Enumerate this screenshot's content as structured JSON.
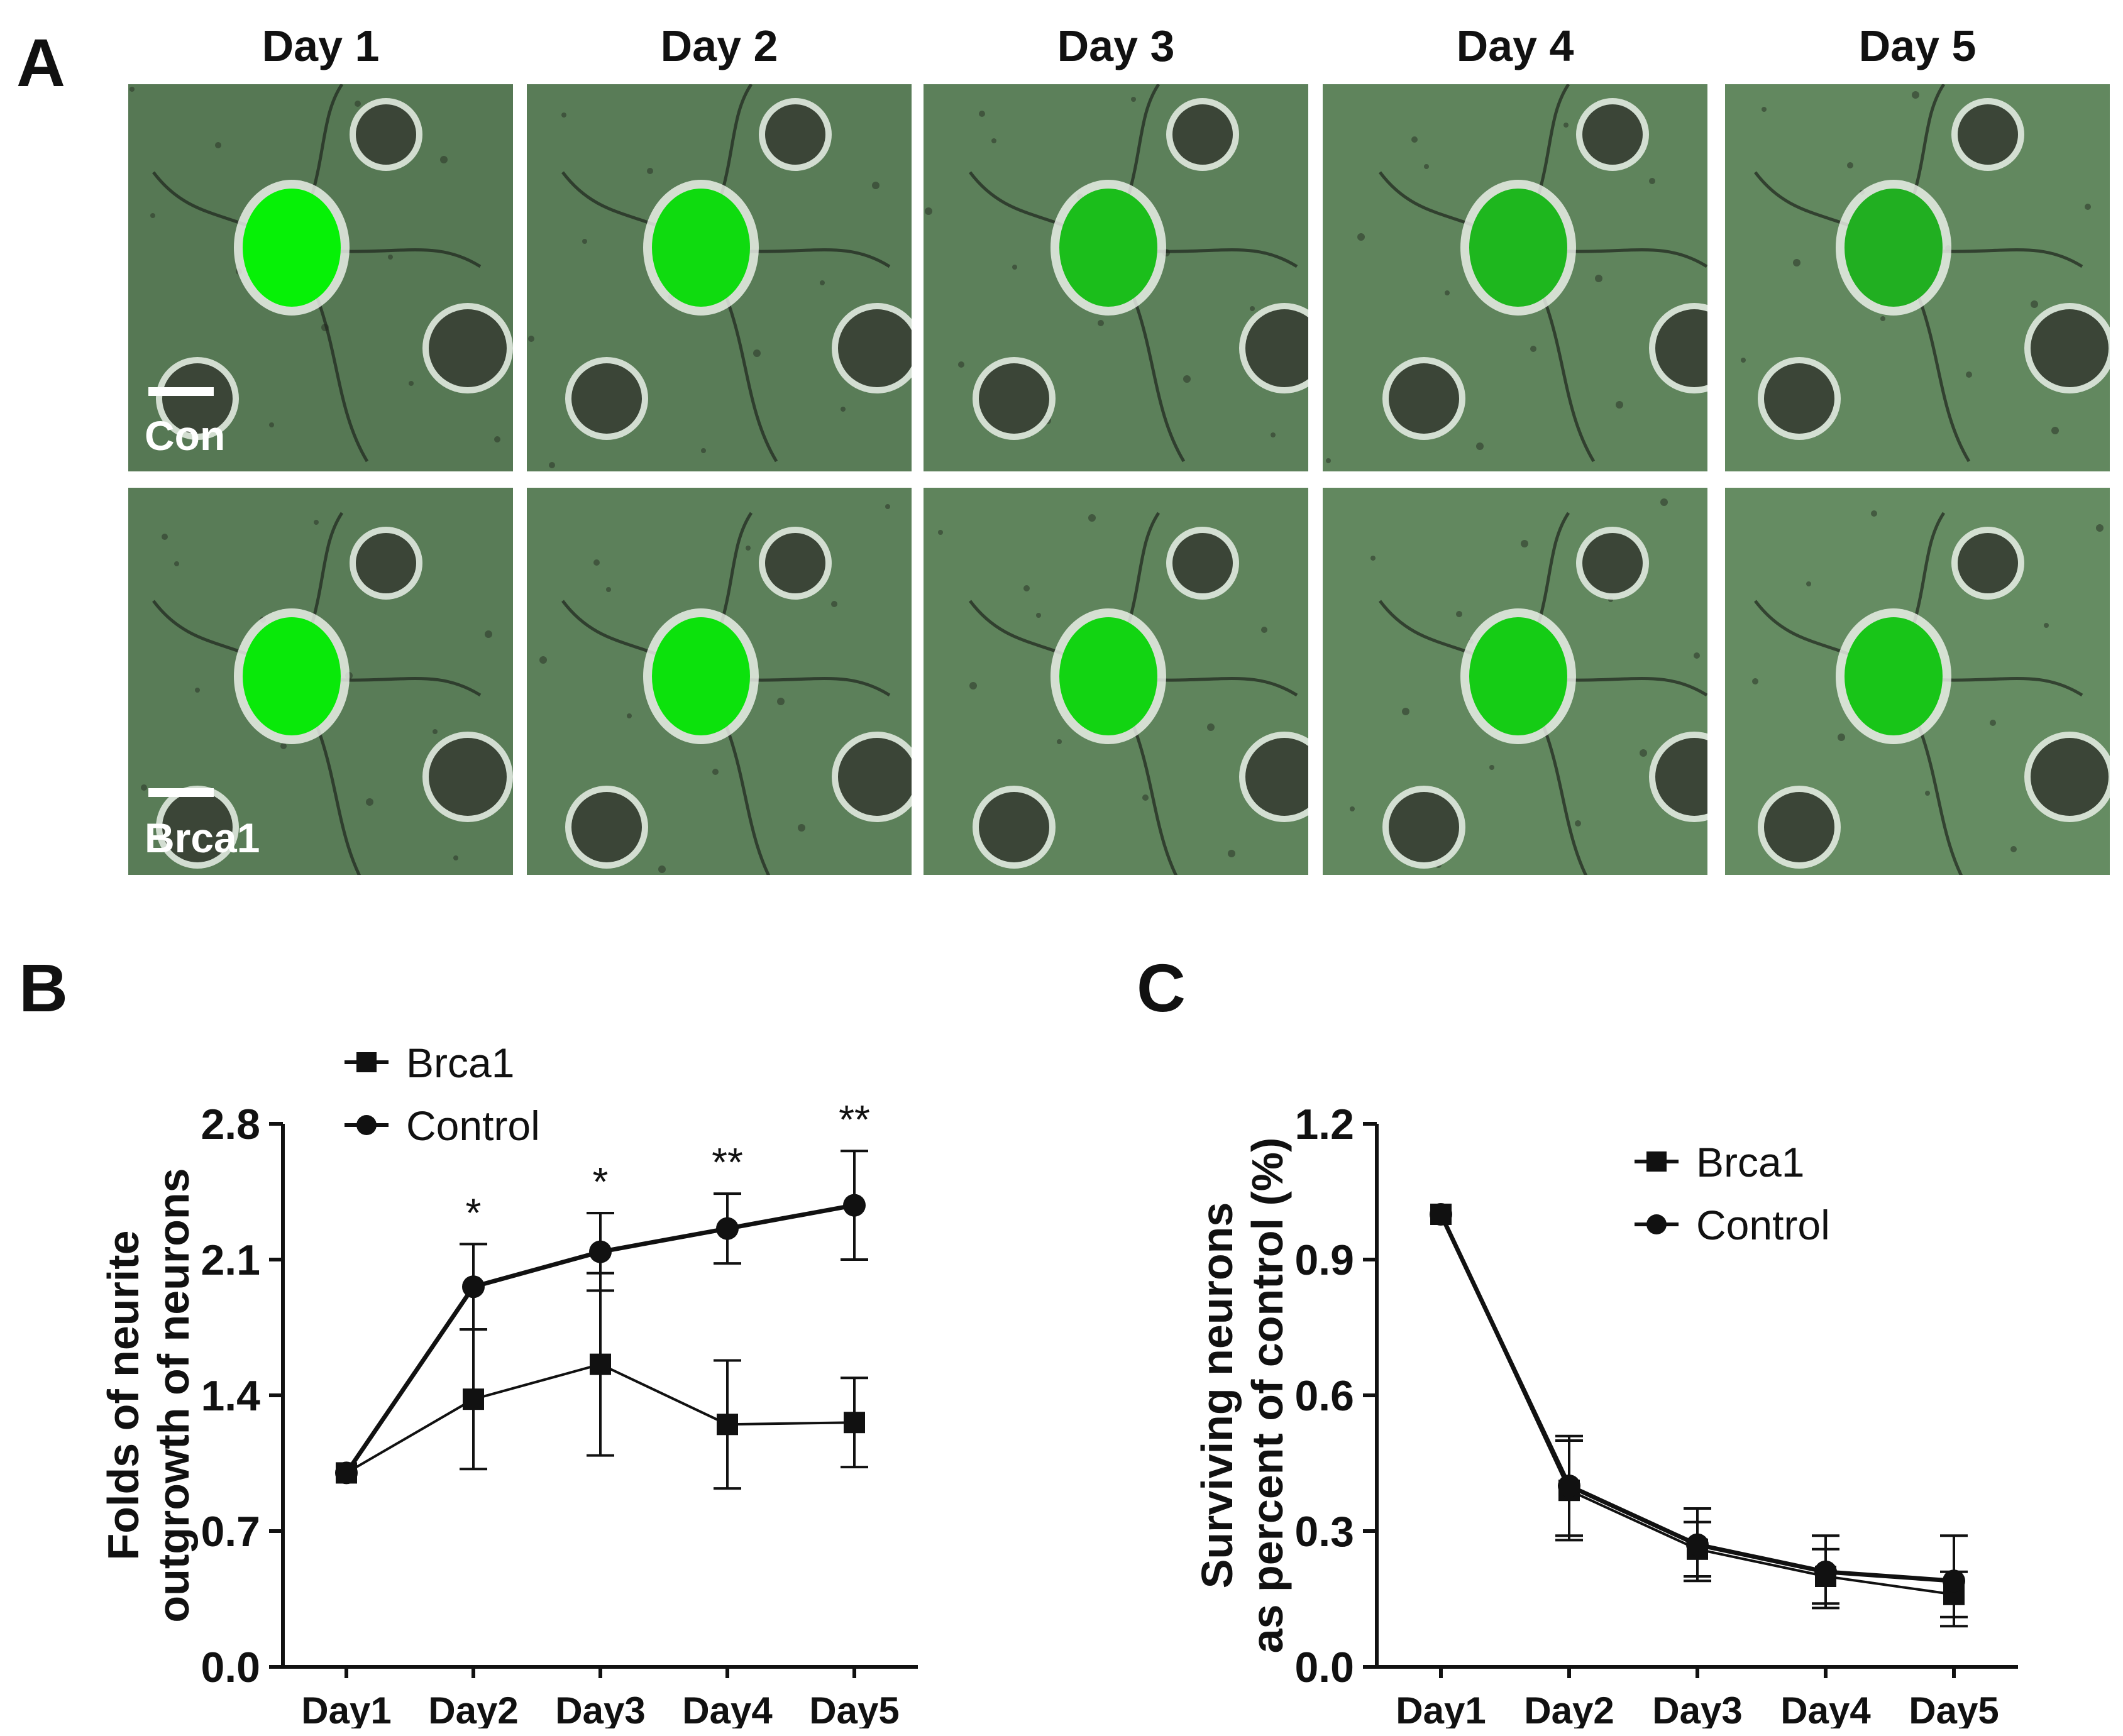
{
  "panels": {
    "A": {
      "label": "A",
      "days": [
        "Day 1",
        "Day 2",
        "Day 3",
        "Day 4",
        "Day 5"
      ],
      "rows": [
        {
          "label": "Con",
          "green_intensity": [
            0.9,
            0.75,
            0.55,
            0.5,
            0.45
          ]
        },
        {
          "label": "Brca1",
          "green_intensity": [
            0.85,
            0.8,
            0.7,
            0.65,
            0.6
          ]
        }
      ]
    },
    "B": {
      "label": "B"
    },
    "C": {
      "label": "C"
    }
  },
  "chart_data": [
    {
      "type": "line",
      "panel": "B",
      "ylabel_line1": "Folds of neurite",
      "ylabel_line2": "outgrowth of neurons",
      "categories": [
        "Day1",
        "Day2",
        "Day3",
        "Day4",
        "Day5"
      ],
      "ylim": [
        0.0,
        2.8
      ],
      "yticks": [
        "0.0",
        "0.7",
        "1.4",
        "2.1",
        "2.8"
      ],
      "legend_position": "top-left",
      "series": [
        {
          "name": "Brca1",
          "marker": "square",
          "values": [
            1.0,
            1.38,
            1.56,
            1.25,
            1.26
          ],
          "errors": [
            0.0,
            0.36,
            0.47,
            0.33,
            0.23
          ]
        },
        {
          "name": "Control",
          "marker": "circle",
          "values": [
            1.0,
            1.96,
            2.14,
            2.26,
            2.38
          ],
          "errors": [
            0.0,
            0.22,
            0.2,
            0.18,
            0.28
          ]
        }
      ],
      "annotations": [
        "",
        "*",
        "*",
        "**",
        "**"
      ]
    },
    {
      "type": "line",
      "panel": "C",
      "ylabel_line1": "Surviving neurons",
      "ylabel_line2": "as percent of control (%)",
      "categories": [
        "Day1",
        "Day2",
        "Day3",
        "Day4",
        "Day5"
      ],
      "ylim": [
        0.0,
        1.2
      ],
      "yticks": [
        "0.0",
        "0.3",
        "0.6",
        "0.9",
        "1.2"
      ],
      "legend_position": "top-right",
      "series": [
        {
          "name": "Brca1",
          "marker": "square",
          "values": [
            1.0,
            0.39,
            0.26,
            0.2,
            0.16
          ],
          "errors": [
            0.0,
            0.11,
            0.06,
            0.06,
            0.05
          ]
        },
        {
          "name": "Control",
          "marker": "circle",
          "values": [
            1.0,
            0.4,
            0.27,
            0.21,
            0.19
          ],
          "errors": [
            0.0,
            0.11,
            0.08,
            0.08,
            0.1
          ]
        }
      ],
      "annotations": [
        "",
        "",
        "",
        "",
        ""
      ]
    }
  ]
}
